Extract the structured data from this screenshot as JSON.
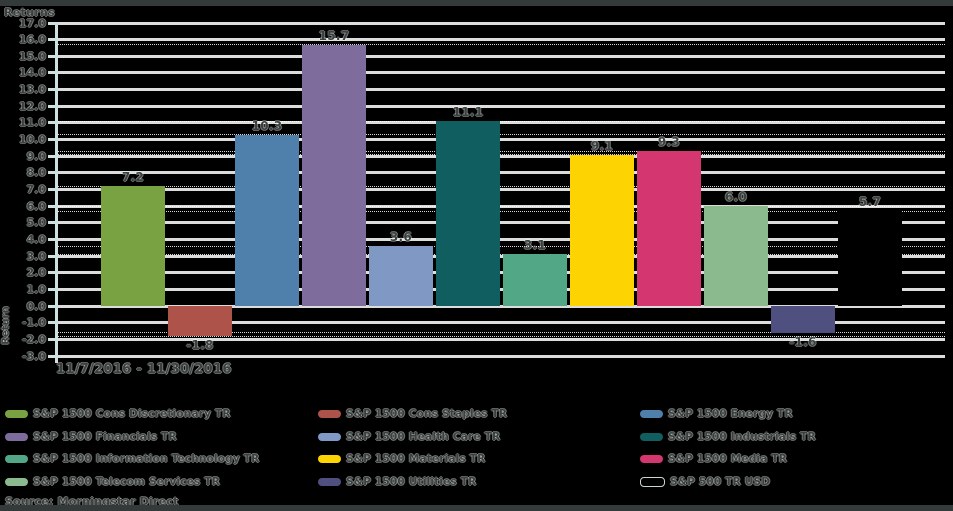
{
  "title": "Returns",
  "y_axis_label": "Return",
  "x_axis_label": "11/7/2016 - 11/30/2016",
  "source": "Source: Morningstar Direct",
  "chart_data": {
    "type": "bar",
    "title": "Returns",
    "xlabel": "11/7/2016 - 11/30/2016",
    "ylabel": "Return",
    "ylim": [
      -3.0,
      17.0
    ],
    "ytick_step": 1.0,
    "grid": true,
    "legend_position": "bottom",
    "series": [
      {
        "name": "S&P 1500 Cons Discretionary TR",
        "value": 7.2,
        "color": "#79a342",
        "outlined": false
      },
      {
        "name": "S&P 1500 Cons Staples TR",
        "value": -1.8,
        "color": "#ae5349",
        "outlined": false
      },
      {
        "name": "S&P 1500 Energy TR",
        "value": 10.3,
        "color": "#4f80ac",
        "outlined": false
      },
      {
        "name": "S&P 1500 Financials TR",
        "value": 15.7,
        "color": "#7e6c9d",
        "outlined": false
      },
      {
        "name": "S&P 1500 Health Care TR",
        "value": 3.6,
        "color": "#8099c4",
        "outlined": false
      },
      {
        "name": "S&P 1500 Industrials TR",
        "value": 11.1,
        "color": "#115e60",
        "outlined": false
      },
      {
        "name": "S&P 1500 Information Technology TR",
        "value": 3.1,
        "color": "#52a886",
        "outlined": false
      },
      {
        "name": "S&P 1500 Materials TR",
        "value": 9.1,
        "color": "#fdd301",
        "outlined": false
      },
      {
        "name": "S&P 1500 Media TR",
        "value": 9.3,
        "color": "#d4366f",
        "outlined": false
      },
      {
        "name": "S&P 1500 Telecom Services TR",
        "value": 6.0,
        "color": "#8cba8f",
        "outlined": false
      },
      {
        "name": "S&P 1500 Utilities TR",
        "value": -1.6,
        "color": "#4f5080",
        "outlined": false
      },
      {
        "name": "S&P 500 TR USD",
        "value": 5.7,
        "color": "#000000",
        "outlined": true
      }
    ]
  }
}
